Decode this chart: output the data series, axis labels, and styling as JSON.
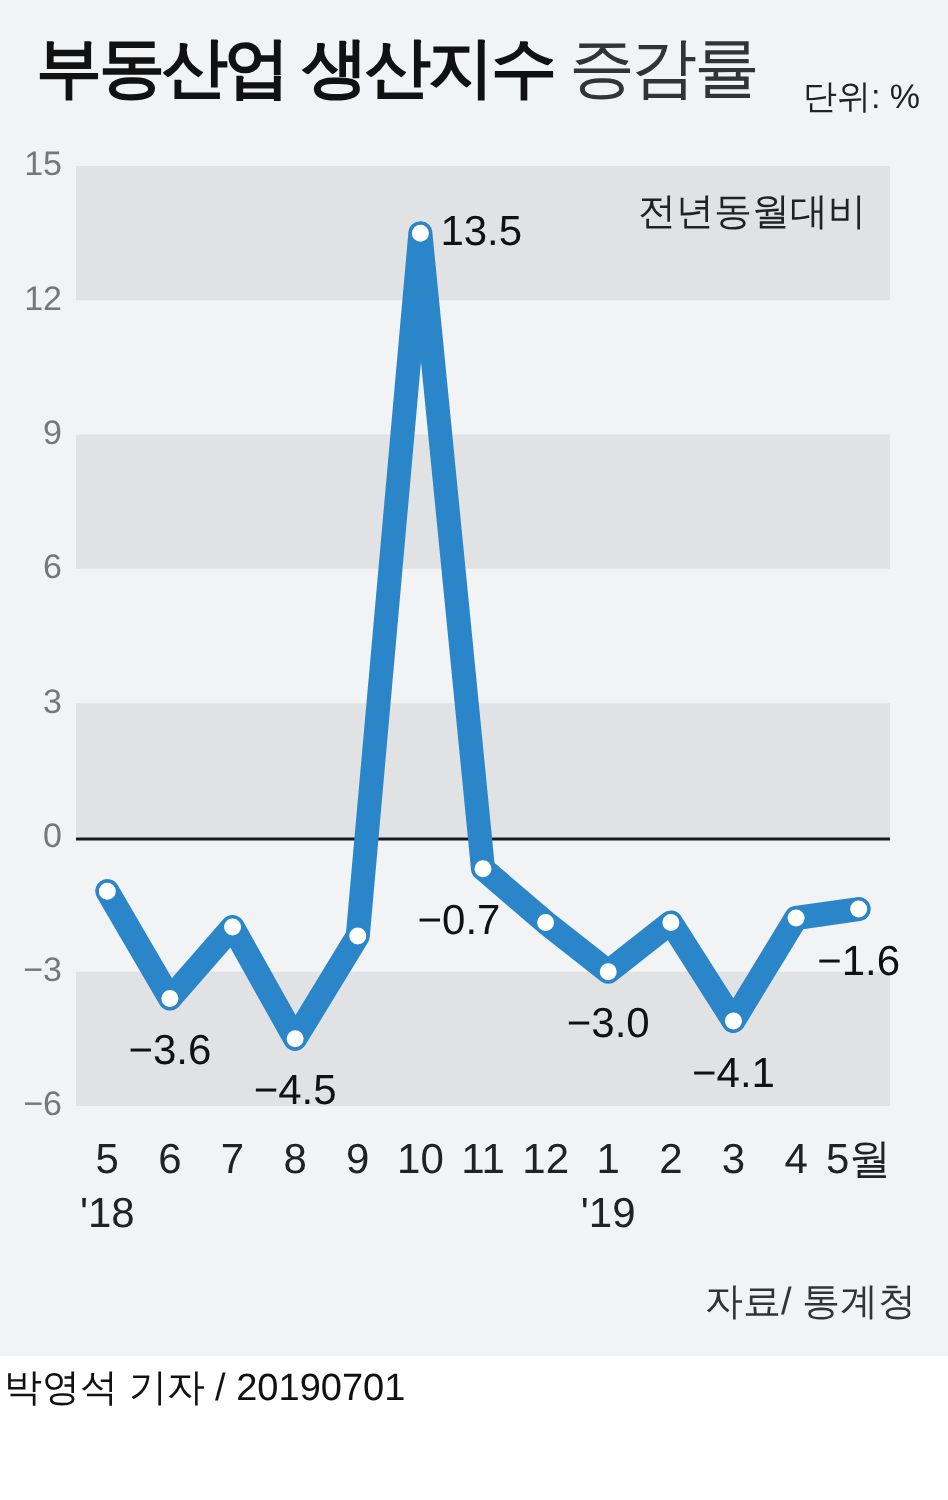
{
  "chart_data": {
    "type": "line",
    "title": "부동산업 생산지수 증감률",
    "ylabel": "단위: %",
    "annotations": [
      "전년동월대비",
      "자료/ 통계청",
      "박영석 기자 / 20190701"
    ],
    "categories": [
      "5\n'18",
      "6",
      "7",
      "8",
      "9",
      "10",
      "11",
      "12",
      "1\n'19",
      "2",
      "3",
      "4",
      "5월"
    ],
    "values": [
      -1.2,
      -3.6,
      -2.0,
      -4.5,
      -2.2,
      13.5,
      -0.7,
      -1.9,
      -3.0,
      -1.9,
      -4.1,
      -1.8,
      -1.6
    ],
    "value_labels": [
      null,
      "−3.6",
      null,
      "−4.5",
      null,
      "13.5",
      "−0.7",
      null,
      "−3.0",
      null,
      "−4.1",
      null,
      "−1.6"
    ],
    "color": "#2a86c8",
    "ylim": [
      -6,
      15
    ],
    "yticks": [
      {
        "value": -6,
        "label": "−6"
      },
      {
        "value": -3,
        "label": "−3"
      },
      0,
      3,
      6,
      9,
      12,
      15
    ],
    "marker": "circle",
    "line_style": "solid",
    "ref_lines": [
      {
        "axis": "y",
        "value": 0,
        "color": "#1a1a1a"
      }
    ],
    "bands": [
      {
        "axis": "y",
        "from": 12,
        "to": 15,
        "color": "#e1e2e4"
      },
      {
        "axis": "y",
        "from": 6,
        "to": 9,
        "color": "#e1e2e4"
      },
      {
        "axis": "y",
        "from": 0,
        "to": 3,
        "color": "#e1e2e4"
      },
      {
        "axis": "y",
        "from": -6,
        "to": -3,
        "color": "#e1e2e4"
      }
    ]
  }
}
